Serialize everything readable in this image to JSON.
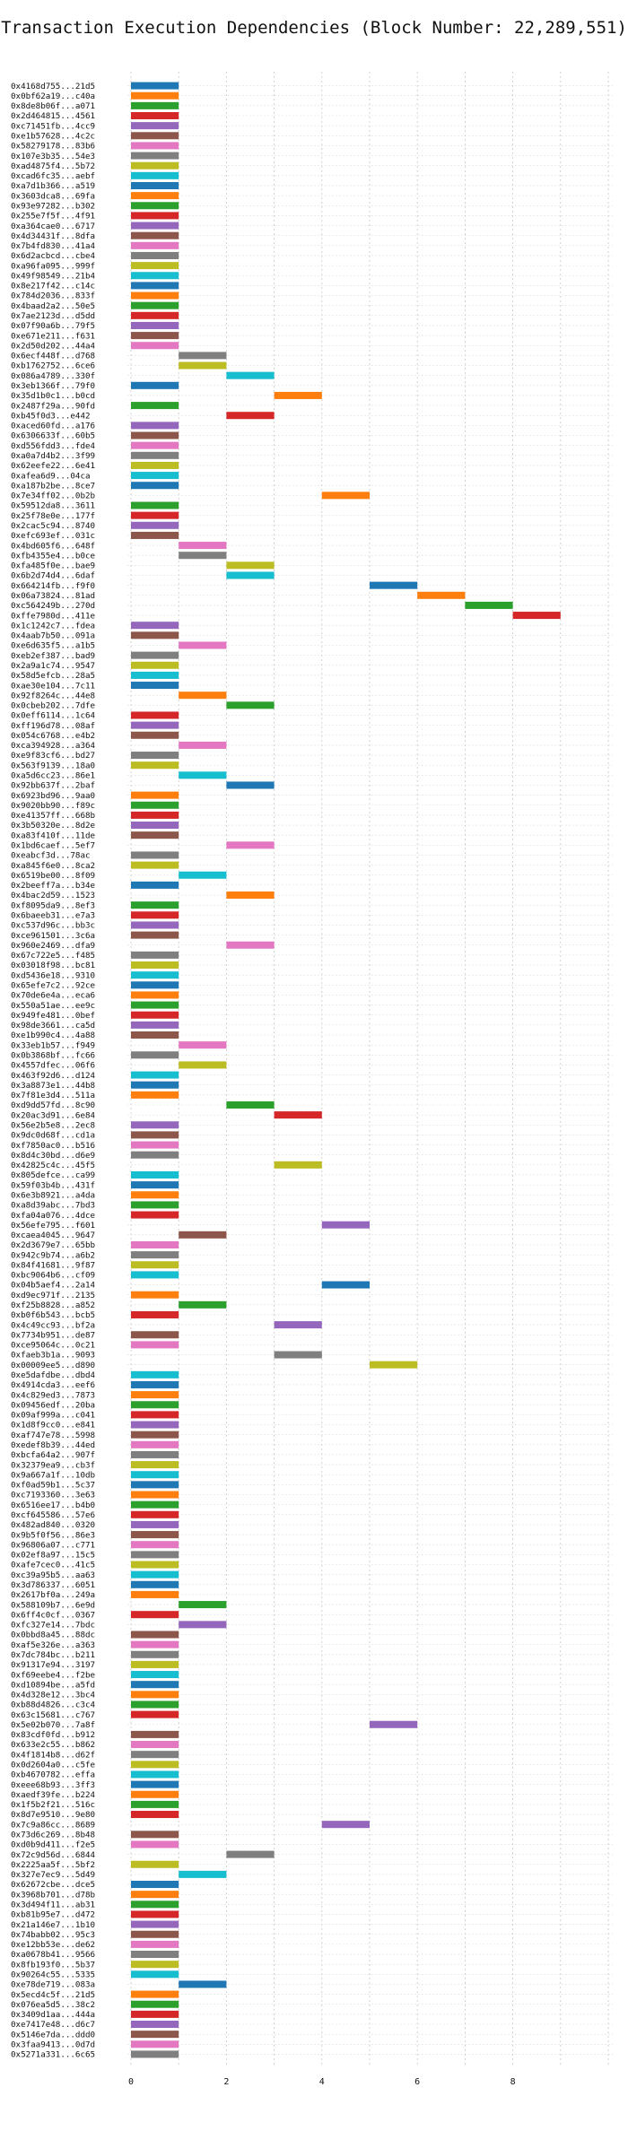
{
  "chart_data": {
    "type": "bar",
    "title": "Transaction Execution Dependencies (Block Number: 22,289,551)",
    "xlabel": "",
    "ylabel": "",
    "xlim": [
      0,
      10
    ],
    "xticks": [
      0,
      2,
      4,
      6,
      8
    ],
    "grid": true,
    "palette": [
      "#1f77b4",
      "#ff7f0e",
      "#2ca02c",
      "#d62728",
      "#9467bd",
      "#8c564b",
      "#e377c2",
      "#7f7f7f",
      "#bcbd22",
      "#17becf"
    ],
    "transactions": [
      {
        "label": "0x4168d755...21d5",
        "start": 0
      },
      {
        "label": "0x0bf62a19...c40a",
        "start": 0
      },
      {
        "label": "0x8de8b06f...a071",
        "start": 0
      },
      {
        "label": "0x2d464815...4561",
        "start": 0
      },
      {
        "label": "0xc71451fb...4cc9",
        "start": 0
      },
      {
        "label": "0xe1b57628...4c2c",
        "start": 0
      },
      {
        "label": "0x58279178...83b6",
        "start": 0
      },
      {
        "label": "0x107e3b35...54e3",
        "start": 0
      },
      {
        "label": "0xad4875f4...5b72",
        "start": 0
      },
      {
        "label": "0xcad6fc35...aebf",
        "start": 0
      },
      {
        "label": "0xa7d1b366...a519",
        "start": 0
      },
      {
        "label": "0x3603dca8...69fa",
        "start": 0
      },
      {
        "label": "0x93e97282...b302",
        "start": 0
      },
      {
        "label": "0x255e7f5f...4f91",
        "start": 0
      },
      {
        "label": "0xa364cae0...6717",
        "start": 0
      },
      {
        "label": "0x4d34431f...8dfa",
        "start": 0
      },
      {
        "label": "0x7b4fd830...41a4",
        "start": 0
      },
      {
        "label": "0x6d2acbcd...cbe4",
        "start": 0
      },
      {
        "label": "0xa96fa095...999f",
        "start": 0
      },
      {
        "label": "0x49f98549...21b4",
        "start": 0
      },
      {
        "label": "0x8e217f42...c14c",
        "start": 0
      },
      {
        "label": "0x784d2036...833f",
        "start": 0
      },
      {
        "label": "0x4baad2a2...50e5",
        "start": 0
      },
      {
        "label": "0x7ae2123d...d5dd",
        "start": 0
      },
      {
        "label": "0x07f90a6b...79f5",
        "start": 0
      },
      {
        "label": "0xe671e211...f631",
        "start": 0
      },
      {
        "label": "0x2d50d202...44a4",
        "start": 0
      },
      {
        "label": "0x6ecf448f...d768",
        "start": 1
      },
      {
        "label": "0xb1762752...6ce6",
        "start": 1
      },
      {
        "label": "0x086a4789...330f",
        "start": 2
      },
      {
        "label": "0x3eb1366f...79f0",
        "start": 0
      },
      {
        "label": "0x35d1b0c1...b0cd",
        "start": 3
      },
      {
        "label": "0x2487f29a...90fd",
        "start": 0
      },
      {
        "label": "0xb45f0d3...e442",
        "start": 2
      },
      {
        "label": "0xaced60fd...a176",
        "start": 0
      },
      {
        "label": "0x6306633f...60b5",
        "start": 0
      },
      {
        "label": "0xd556fdd3...fde4",
        "start": 0
      },
      {
        "label": "0xa0a7d4b2...3f99",
        "start": 0
      },
      {
        "label": "0x62eefe22...6e41",
        "start": 0
      },
      {
        "label": "0xafea6d9...04ca",
        "start": 0
      },
      {
        "label": "0xa187b2be...8ce7",
        "start": 0
      },
      {
        "label": "0x7e34ff02...0b2b",
        "start": 4
      },
      {
        "label": "0x59512da8...3611",
        "start": 0
      },
      {
        "label": "0x25f78e0e...177f",
        "start": 0
      },
      {
        "label": "0x2cac5c94...8740",
        "start": 0
      },
      {
        "label": "0xefc693ef...031c",
        "start": 0
      },
      {
        "label": "0x4bd605f6...648f",
        "start": 1
      },
      {
        "label": "0xfb4355e4...b0ce",
        "start": 1
      },
      {
        "label": "0xfa485f0e...bae9",
        "start": 2
      },
      {
        "label": "0x6b2d74d4...6daf",
        "start": 2
      },
      {
        "label": "0x664214fb...f9f0",
        "start": 5
      },
      {
        "label": "0x06a73824...81ad",
        "start": 6
      },
      {
        "label": "0xc564249b...270d",
        "start": 7
      },
      {
        "label": "0xffe7980d...411e",
        "start": 8
      },
      {
        "label": "0x1c1242c7...fdea",
        "start": 0
      },
      {
        "label": "0x4aab7b50...091a",
        "start": 0
      },
      {
        "label": "0xe6d635f5...a1b5",
        "start": 1
      },
      {
        "label": "0xeb2ef387...bad9",
        "start": 0
      },
      {
        "label": "0x2a9a1c74...9547",
        "start": 0
      },
      {
        "label": "0x58d5efcb...28a5",
        "start": 0
      },
      {
        "label": "0xae30e104...7c11",
        "start": 0
      },
      {
        "label": "0x92f8264c...44e8",
        "start": 1
      },
      {
        "label": "0x0cbeb202...7dfe",
        "start": 2
      },
      {
        "label": "0x0eff6114...1c64",
        "start": 0
      },
      {
        "label": "0xff196d78...08af",
        "start": 0
      },
      {
        "label": "0x054c6768...e4b2",
        "start": 0
      },
      {
        "label": "0xca394928...a364",
        "start": 1
      },
      {
        "label": "0xe9f83cf6...bd27",
        "start": 0
      },
      {
        "label": "0x563f9139...18a0",
        "start": 0
      },
      {
        "label": "0xa5d6cc23...86e1",
        "start": 1
      },
      {
        "label": "0x92bb637f...2baf",
        "start": 2
      },
      {
        "label": "0x6923bd96...9aa0",
        "start": 0
      },
      {
        "label": "0x9020bb90...f89c",
        "start": 0
      },
      {
        "label": "0xe41357ff...668b",
        "start": 0
      },
      {
        "label": "0x3b50320e...8d2e",
        "start": 0
      },
      {
        "label": "0xa83f410f...11de",
        "start": 0
      },
      {
        "label": "0x1bd6caef...5ef7",
        "start": 2
      },
      {
        "label": "0xeabcf3d...78ac",
        "start": 0
      },
      {
        "label": "0xa845f6e0...8ca2",
        "start": 0
      },
      {
        "label": "0x6519be00...8f09",
        "start": 1
      },
      {
        "label": "0x2beeff7a...b34e",
        "start": 0
      },
      {
        "label": "0x4bac2d59...1523",
        "start": 2
      },
      {
        "label": "0xf8095da9...8ef3",
        "start": 0
      },
      {
        "label": "0x6baeeb31...e7a3",
        "start": 0
      },
      {
        "label": "0xc537d96c...bb3c",
        "start": 0
      },
      {
        "label": "0xce961501...3c6a",
        "start": 0
      },
      {
        "label": "0x960e2469...dfa9",
        "start": 2
      },
      {
        "label": "0x67c722e5...f485",
        "start": 0
      },
      {
        "label": "0x03018f98...bc81",
        "start": 0
      },
      {
        "label": "0xd5436e18...9310",
        "start": 0
      },
      {
        "label": "0x65efe7c2...92ce",
        "start": 0
      },
      {
        "label": "0x70de6e4a...eca6",
        "start": 0
      },
      {
        "label": "0x550a51ae...ee9c",
        "start": 0
      },
      {
        "label": "0x949fe481...0bef",
        "start": 0
      },
      {
        "label": "0x98de3661...ca5d",
        "start": 0
      },
      {
        "label": "0xe1b990c4...4a88",
        "start": 0
      },
      {
        "label": "0x33eb1b57...f949",
        "start": 1
      },
      {
        "label": "0x0b3868bf...fc66",
        "start": 0
      },
      {
        "label": "0x4557dfec...06f6",
        "start": 1
      },
      {
        "label": "0x463f92d6...d124",
        "start": 0
      },
      {
        "label": "0x3a8873e1...44b8",
        "start": 0
      },
      {
        "label": "0x7f81e3d4...511a",
        "start": 0
      },
      {
        "label": "0xd9dd57fd...8c90",
        "start": 2
      },
      {
        "label": "0x20ac3d91...6e84",
        "start": 3
      },
      {
        "label": "0x56e2b5e8...2ec8",
        "start": 0
      },
      {
        "label": "0x9dc0d68f...cd1a",
        "start": 0
      },
      {
        "label": "0xf7850ac0...b516",
        "start": 0
      },
      {
        "label": "0x8d4c30bd...d6e9",
        "start": 0
      },
      {
        "label": "0x42825c4c...45f5",
        "start": 3
      },
      {
        "label": "0x805defce...ca99",
        "start": 0
      },
      {
        "label": "0x59f03b4b...431f",
        "start": 0
      },
      {
        "label": "0x6e3b8921...a4da",
        "start": 0
      },
      {
        "label": "0xa8d39abc...7bd3",
        "start": 0
      },
      {
        "label": "0xfa04a076...4dce",
        "start": 0
      },
      {
        "label": "0x56efe795...f601",
        "start": 4
      },
      {
        "label": "0xcaea4045...9647",
        "start": 1
      },
      {
        "label": "0x2d3679e7...65bb",
        "start": 0
      },
      {
        "label": "0x942c9b74...a6b2",
        "start": 0
      },
      {
        "label": "0x84f41681...9f87",
        "start": 0
      },
      {
        "label": "0xbc9064b6...cf09",
        "start": 0
      },
      {
        "label": "0x04b5aef4...2a14",
        "start": 4
      },
      {
        "label": "0xd9ec971f...2135",
        "start": 0
      },
      {
        "label": "0xf25b8828...a852",
        "start": 1
      },
      {
        "label": "0xb0f6b543...bcb5",
        "start": 0
      },
      {
        "label": "0x4c49cc93...bf2a",
        "start": 3
      },
      {
        "label": "0x7734b951...de87",
        "start": 0
      },
      {
        "label": "0xce95064c...0c21",
        "start": 0
      },
      {
        "label": "0xfaeb3b1a...9093",
        "start": 3
      },
      {
        "label": "0x00009ee5...d890",
        "start": 5
      },
      {
        "label": "0xe5dafdbe...dbd4",
        "start": 0
      },
      {
        "label": "0x4914cda3...eef6",
        "start": 0
      },
      {
        "label": "0x4c829ed3...7873",
        "start": 0
      },
      {
        "label": "0x09456edf...20ba",
        "start": 0
      },
      {
        "label": "0x09af999a...c041",
        "start": 0
      },
      {
        "label": "0x1d8f9cc0...e841",
        "start": 0
      },
      {
        "label": "0xaf747e78...5998",
        "start": 0
      },
      {
        "label": "0xedef8b39...44ed",
        "start": 0
      },
      {
        "label": "0xbcfa64a2...907f",
        "start": 0
      },
      {
        "label": "0x32379ea9...cb3f",
        "start": 0
      },
      {
        "label": "0x9a667a1f...10db",
        "start": 0
      },
      {
        "label": "0xf0ad59b1...5c37",
        "start": 0
      },
      {
        "label": "0xc7193360...3e63",
        "start": 0
      },
      {
        "label": "0x6516ee17...b4b0",
        "start": 0
      },
      {
        "label": "0xcf645586...57e6",
        "start": 0
      },
      {
        "label": "0x482ad840...0320",
        "start": 0
      },
      {
        "label": "0x9b5f0f56...86e3",
        "start": 0
      },
      {
        "label": "0x96806a07...c771",
        "start": 0
      },
      {
        "label": "0x02ef8a97...15c5",
        "start": 0
      },
      {
        "label": "0xafe7cec0...41c5",
        "start": 0
      },
      {
        "label": "0xc39a95b5...aa63",
        "start": 0
      },
      {
        "label": "0x3d786337...6051",
        "start": 0
      },
      {
        "label": "0x2617bf0a...249a",
        "start": 0
      },
      {
        "label": "0x588109b7...6e9d",
        "start": 1
      },
      {
        "label": "0x6ff4c0cf...0367",
        "start": 0
      },
      {
        "label": "0xfc327e14...7bdc",
        "start": 1
      },
      {
        "label": "0x0bbd8a45...88dc",
        "start": 0
      },
      {
        "label": "0xaf5e326e...a363",
        "start": 0
      },
      {
        "label": "0x7dc784bc...b211",
        "start": 0
      },
      {
        "label": "0x91317e94...3197",
        "start": 0
      },
      {
        "label": "0xf69eebe4...f2be",
        "start": 0
      },
      {
        "label": "0xd10894be...a5fd",
        "start": 0
      },
      {
        "label": "0x4d328e12...3bc4",
        "start": 0
      },
      {
        "label": "0xb88d4826...c3c4",
        "start": 0
      },
      {
        "label": "0x63c15681...c767",
        "start": 0
      },
      {
        "label": "0x5e02b070...7a8f",
        "start": 5
      },
      {
        "label": "0x83cdf0fd...b912",
        "start": 0
      },
      {
        "label": "0x633e2c55...b862",
        "start": 0
      },
      {
        "label": "0x4f1814b8...d62f",
        "start": 0
      },
      {
        "label": "0x0d2604a0...c5fe",
        "start": 0
      },
      {
        "label": "0xb4670782...effa",
        "start": 0
      },
      {
        "label": "0xeee68b93...3ff3",
        "start": 0
      },
      {
        "label": "0xaedf39fe...b224",
        "start": 0
      },
      {
        "label": "0x1f5b2f21...516c",
        "start": 0
      },
      {
        "label": "0x8d7e9510...9e80",
        "start": 0
      },
      {
        "label": "0x7c9a86cc...8689",
        "start": 4
      },
      {
        "label": "0x73d6c269...8b48",
        "start": 0
      },
      {
        "label": "0xd0b9d411...f2e5",
        "start": 0
      },
      {
        "label": "0x72c9d56d...6844",
        "start": 2
      },
      {
        "label": "0x2225aa5f...5bf2",
        "start": 0
      },
      {
        "label": "0x327e7ec9...5d49",
        "start": 1
      },
      {
        "label": "0x62672cbe...dce5",
        "start": 0
      },
      {
        "label": "0x3968b701...d78b",
        "start": 0
      },
      {
        "label": "0x3d494f11...ab31",
        "start": 0
      },
      {
        "label": "0xb81b95e7...d472",
        "start": 0
      },
      {
        "label": "0x21a146e7...1b10",
        "start": 0
      },
      {
        "label": "0x74babb02...95c3",
        "start": 0
      },
      {
        "label": "0xe12bb53e...de62",
        "start": 0
      },
      {
        "label": "0xa0678b41...9566",
        "start": 0
      },
      {
        "label": "0x8fb193f0...5b37",
        "start": 0
      },
      {
        "label": "0x90264c55...5335",
        "start": 0
      },
      {
        "label": "0xe78de719...083a",
        "start": 1
      },
      {
        "label": "0x5ecd4c5f...21d5",
        "start": 0
      },
      {
        "label": "0x076ea5d5...38c2",
        "start": 0
      },
      {
        "label": "0x3409d1aa...444a",
        "start": 0
      },
      {
        "label": "0xe7417e48...d6c7",
        "start": 0
      },
      {
        "label": "0x5146e7da...ddd0",
        "start": 0
      },
      {
        "label": "0x3faa9413...0d7d",
        "start": 0
      },
      {
        "label": "0x5271a331...6c65",
        "start": 0
      }
    ]
  }
}
